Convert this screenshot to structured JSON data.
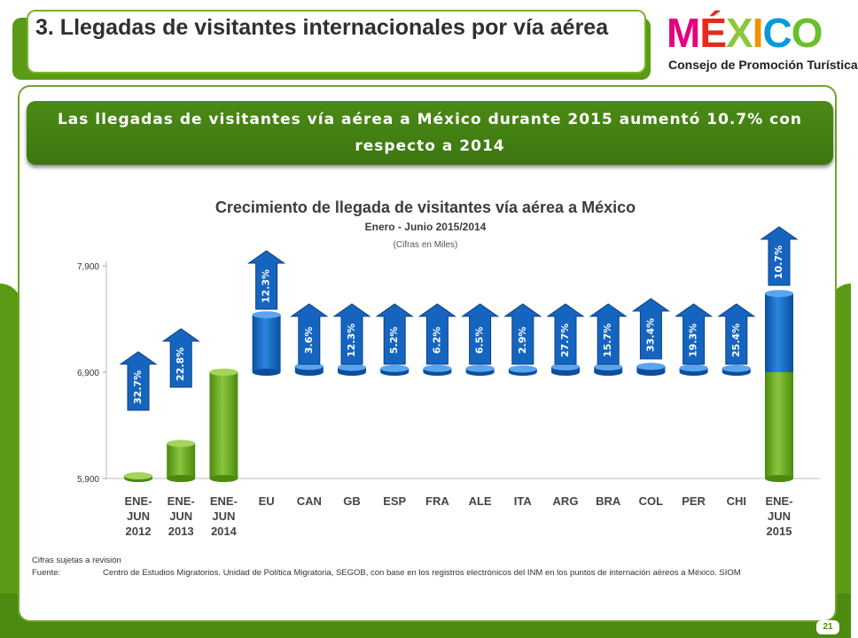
{
  "slide": {
    "title": "3. Llegadas de visitantes internacionales por vía aérea",
    "logo_word": "MÉXICO",
    "logo_subtitle": "Consejo de Promoción Turística",
    "banner": "Las llegadas de visitantes vía aérea  a México durante 2015 aumentó 10.7% con respecto a 2014",
    "footnote": "Cifras sujetas a revisión",
    "source_label": "Fuente:",
    "source_text": "Centro de Estudios Migratorios. Unidad de Política Migratoria, SEGOB, con base en los registros electrónicos del INM en los puntos de internación aéreos a México. SIOM",
    "page_number": "21",
    "colors": {
      "green_dark": "#4d8a10",
      "green_bar": "#6aa51b",
      "blue_bar": "#1f6fc8",
      "arrow_blue": "#1565c0"
    }
  },
  "chart_data": {
    "type": "bar",
    "title": "Crecimiento de llegada de visitantes vía aérea a México",
    "subtitle": "Enero - Junio 2015/2014",
    "note": "(Cifras en Miles)",
    "ylim": [
      5900,
      7900
    ],
    "yticks": [
      "7,900",
      "6,900",
      "5,900"
    ],
    "ytick_values": [
      7900,
      6900,
      5900
    ],
    "categories": [
      "ENE-\nJUN\n2012",
      "ENE-\nJUN\n2013",
      "ENE-\nJUN\n2014",
      "EU",
      "CAN",
      "GB",
      "ESP",
      "FRA",
      "ALE",
      "ITA",
      "ARG",
      "BRA",
      "COL",
      "PER",
      "CHI",
      "ENE-\nJUN\n2015"
    ],
    "bars": [
      {
        "kind": "total",
        "base": 5900,
        "value": 5915
      },
      {
        "kind": "total",
        "base": 5900,
        "value": 6230
      },
      {
        "kind": "total",
        "base": 5900,
        "value": 6900
      },
      {
        "kind": "increment",
        "base": 6900,
        "value": 7440
      },
      {
        "kind": "increment",
        "base": 6900,
        "value": 6955
      },
      {
        "kind": "increment",
        "base": 6900,
        "value": 6945
      },
      {
        "kind": "increment",
        "base": 6900,
        "value": 6935
      },
      {
        "kind": "increment",
        "base": 6900,
        "value": 6935
      },
      {
        "kind": "increment",
        "base": 6900,
        "value": 6935
      },
      {
        "kind": "increment",
        "base": 6900,
        "value": 6930
      },
      {
        "kind": "increment",
        "base": 6900,
        "value": 6950
      },
      {
        "kind": "increment",
        "base": 6900,
        "value": 6950
      },
      {
        "kind": "increment",
        "base": 6900,
        "value": 6955
      },
      {
        "kind": "increment",
        "base": 6900,
        "value": 6940
      },
      {
        "kind": "increment",
        "base": 6900,
        "value": 6935
      },
      {
        "kind": "total2015",
        "base": 5900,
        "value": 7640,
        "split": 6900
      }
    ],
    "growth_labels": [
      "32.7%",
      "22.8%",
      "",
      "12.3%",
      "3.6%",
      "12.3%",
      "5.2%",
      "6.2%",
      "6.5%",
      "2.9%",
      "27.7%",
      "15.7%",
      "33.4%",
      "19.3%",
      "25.4%",
      "10.7%"
    ],
    "grid": false,
    "legend": "none"
  }
}
